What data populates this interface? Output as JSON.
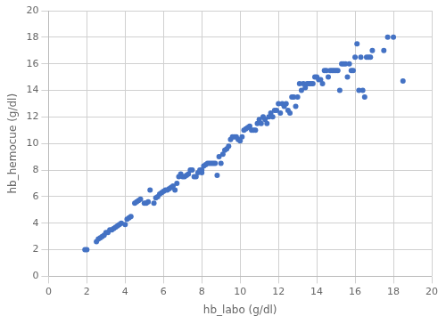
{
  "chart_data": {
    "type": "scatter",
    "x": [
      1.9,
      2.0,
      2.5,
      2.6,
      2.7,
      2.8,
      2.9,
      3.0,
      3.1,
      3.2,
      3.3,
      3.4,
      3.5,
      3.6,
      3.7,
      3.8,
      4.0,
      4.1,
      4.2,
      4.3,
      4.5,
      4.6,
      4.7,
      4.8,
      5.0,
      5.1,
      5.2,
      5.3,
      5.5,
      5.6,
      5.7,
      5.8,
      5.9,
      6.0,
      6.1,
      6.2,
      6.3,
      6.4,
      6.5,
      6.6,
      6.7,
      6.8,
      6.9,
      7.0,
      7.1,
      7.2,
      7.3,
      7.4,
      7.5,
      7.6,
      7.7,
      7.8,
      7.9,
      8.0,
      8.0,
      8.1,
      8.2,
      8.3,
      8.4,
      8.5,
      8.6,
      8.7,
      8.8,
      8.9,
      9.0,
      9.1,
      9.2,
      9.3,
      9.4,
      9.5,
      9.6,
      9.7,
      9.8,
      9.9,
      10.0,
      10.1,
      10.2,
      10.3,
      10.4,
      10.5,
      10.6,
      10.7,
      10.8,
      10.9,
      11.0,
      11.1,
      11.2,
      11.3,
      11.4,
      11.5,
      11.6,
      11.7,
      11.8,
      11.9,
      12.0,
      12.1,
      12.2,
      12.3,
      12.4,
      12.5,
      12.6,
      12.7,
      12.8,
      12.9,
      13.0,
      13.1,
      13.2,
      13.3,
      13.4,
      13.5,
      13.6,
      13.7,
      13.8,
      13.9,
      14.0,
      14.1,
      14.2,
      14.3,
      14.4,
      14.5,
      14.6,
      14.7,
      14.8,
      14.9,
      15.0,
      15.1,
      15.2,
      15.3,
      15.4,
      15.5,
      15.6,
      15.7,
      15.8,
      15.9,
      16.0,
      16.1,
      16.2,
      16.3,
      16.4,
      16.5,
      16.6,
      16.7,
      16.8,
      16.9,
      17.5,
      17.7,
      18.0,
      18.5
    ],
    "values": [
      2.0,
      2.0,
      2.6,
      2.8,
      2.9,
      3.0,
      3.1,
      3.3,
      3.3,
      3.5,
      3.5,
      3.6,
      3.7,
      3.8,
      3.9,
      4.0,
      3.9,
      4.3,
      4.4,
      4.5,
      5.5,
      5.6,
      5.7,
      5.8,
      5.5,
      5.5,
      5.6,
      6.5,
      5.5,
      5.9,
      6.0,
      6.2,
      6.3,
      6.4,
      6.5,
      6.5,
      6.6,
      6.7,
      6.8,
      6.5,
      7.0,
      7.5,
      7.7,
      7.5,
      7.5,
      7.6,
      7.7,
      8.0,
      8.0,
      7.5,
      7.5,
      7.8,
      8.0,
      7.8,
      8.0,
      8.3,
      8.4,
      8.5,
      8.5,
      8.5,
      8.5,
      8.5,
      7.6,
      9.0,
      8.5,
      9.2,
      9.5,
      9.6,
      9.8,
      10.3,
      10.5,
      10.5,
      10.5,
      10.3,
      10.2,
      10.5,
      11.0,
      11.1,
      11.2,
      11.3,
      11.0,
      11.0,
      11.0,
      11.5,
      11.8,
      11.5,
      12.0,
      11.8,
      11.5,
      12.0,
      12.3,
      12.0,
      12.5,
      12.5,
      13.0,
      12.3,
      13.0,
      12.8,
      13.0,
      12.5,
      12.3,
      13.5,
      13.5,
      12.8,
      13.5,
      14.5,
      14.0,
      14.5,
      14.2,
      14.5,
      14.5,
      14.5,
      14.5,
      15.0,
      15.0,
      14.8,
      14.8,
      14.5,
      15.5,
      15.5,
      15.0,
      15.5,
      15.5,
      15.5,
      15.5,
      15.5,
      14.0,
      16.0,
      16.0,
      16.0,
      15.0,
      16.0,
      15.5,
      15.5,
      16.5,
      17.5,
      14.0,
      16.5,
      14.0,
      13.5,
      16.5,
      16.5,
      16.5,
      17.0,
      17.0,
      18.0,
      18.0,
      14.7
    ],
    "color": "#4472C4",
    "xlabel": "hb_labo (g/dl)",
    "ylabel": "hb_hemocue (g/dl)",
    "xlim": [
      0,
      20
    ],
    "ylim": [
      0,
      20
    ],
    "xticks": [
      0,
      2,
      4,
      6,
      8,
      10,
      12,
      14,
      16,
      18,
      20
    ],
    "yticks": [
      0,
      2,
      4,
      6,
      8,
      10,
      12,
      14,
      16,
      18,
      20
    ],
    "grid": true
  }
}
